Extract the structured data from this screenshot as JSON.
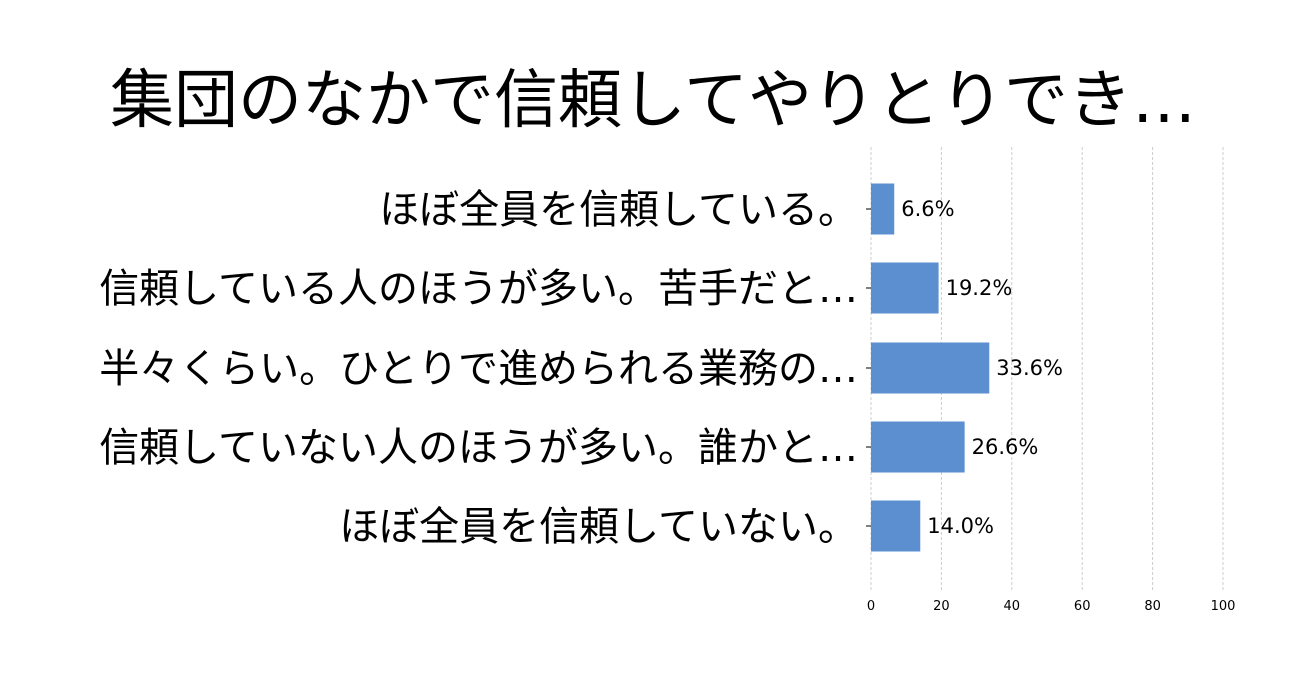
{
  "chart_data": {
    "type": "bar",
    "orientation": "horizontal",
    "title": "集団のなかで信頼してやりとりでき…",
    "categories": [
      "ほぼ全員を信頼している。",
      "信頼している人のほうが多い。苦手だと…",
      "半々くらい。ひとりで進められる業務の…",
      "信頼していない人のほうが多い。誰かと…",
      "ほぼ全員を信頼していない。"
    ],
    "values": [
      6.6,
      19.2,
      33.6,
      26.6,
      14.0
    ],
    "value_labels": [
      "6.6%",
      "19.2%",
      "33.6%",
      "26.6%",
      "14.0%"
    ],
    "xlim": [
      0,
      100
    ],
    "xticks": [
      0,
      20,
      40,
      60,
      80,
      100
    ],
    "grid": true,
    "bar_color": "#5b8fd0",
    "grid_color": "#cccccc"
  }
}
